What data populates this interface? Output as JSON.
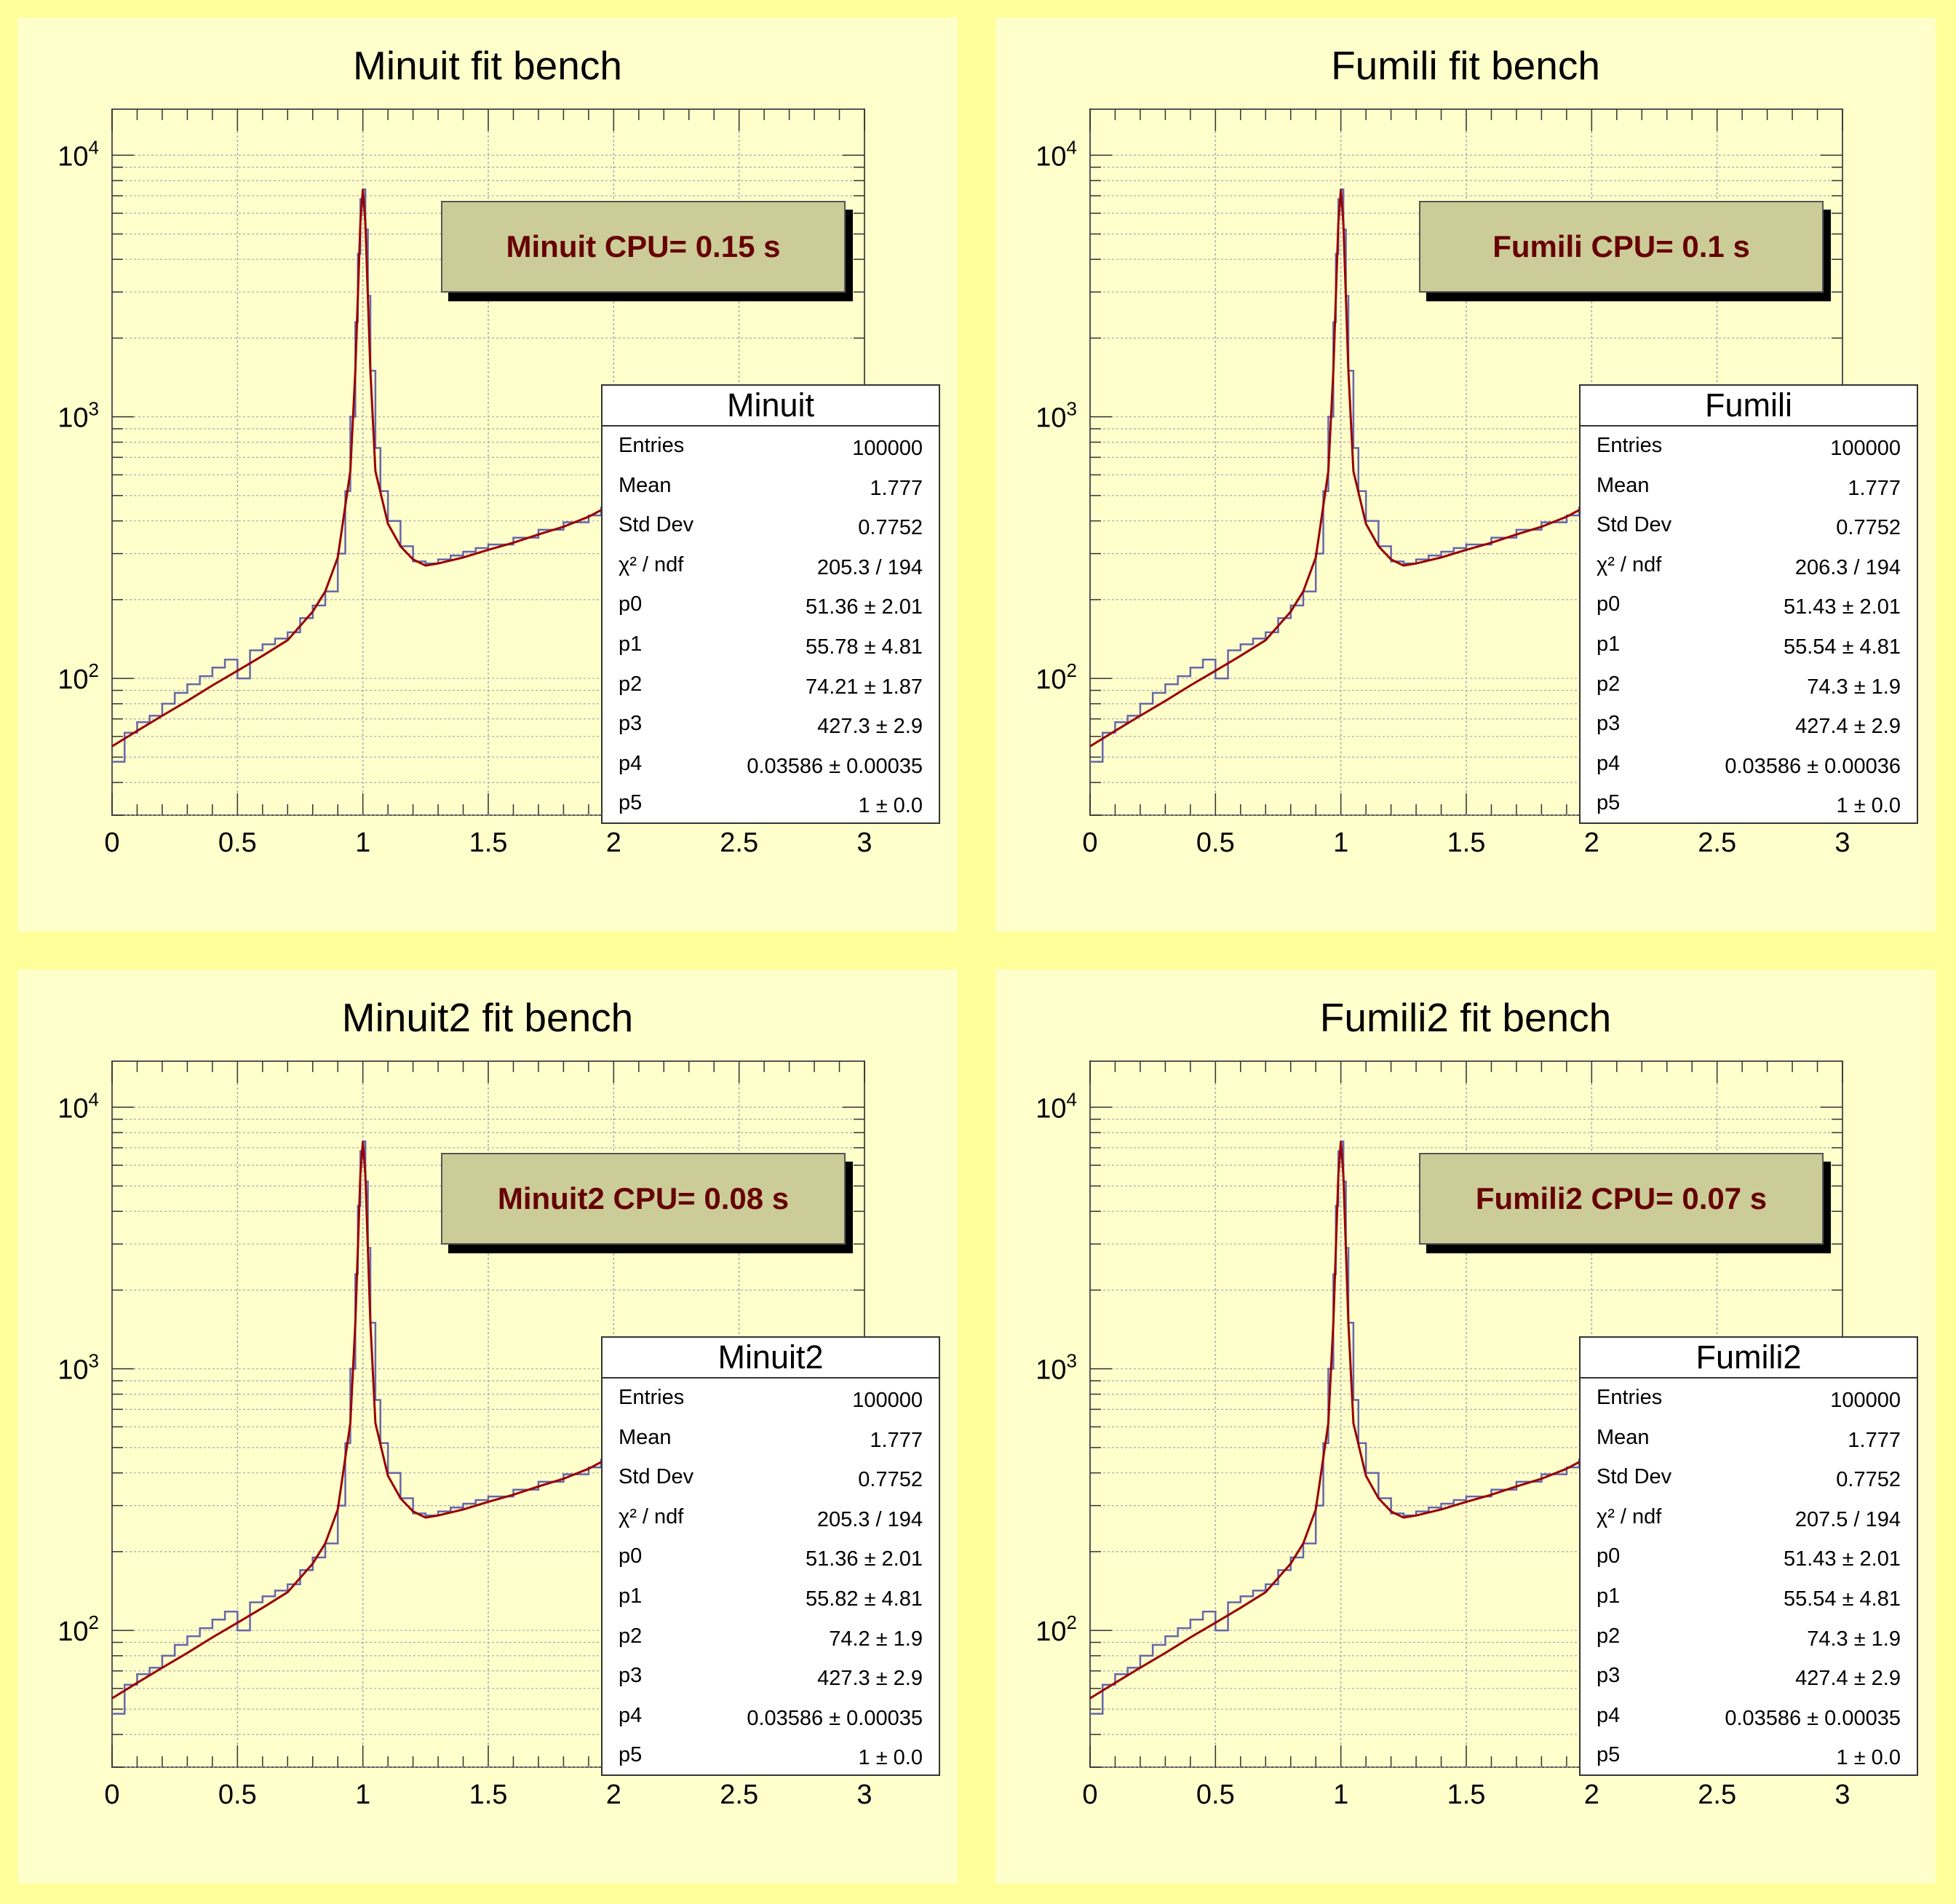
{
  "colors": {
    "canvas": "#ffff99",
    "pad": "#ffffcc",
    "histogram": "#6666aa",
    "fit": "#990000",
    "cpu_box": "#cccc99",
    "cpu_text": "#660000"
  },
  "axis_labels": {
    "x_ticks": [
      "0",
      "0.5",
      "1",
      "1.5",
      "2",
      "2.5",
      "3"
    ],
    "y_tick_base": "10",
    "y_tick_exponents": [
      "2",
      "3",
      "4"
    ]
  },
  "pads": [
    {
      "title": "Minuit fit bench",
      "cpu_label": "Minuit CPU= 0.15 s",
      "stats": {
        "name": "Minuit",
        "rows": [
          {
            "key": "Entries",
            "value": "100000"
          },
          {
            "key": "Mean",
            "value": "1.777"
          },
          {
            "key": "Std Dev",
            "value": "0.7752"
          },
          {
            "key": "χ² / ndf",
            "value": "205.3 / 194"
          },
          {
            "key": "p0",
            "value": "51.36 ± 2.01"
          },
          {
            "key": "p1",
            "value": "55.78 ± 4.81"
          },
          {
            "key": "p2",
            "value": "74.21 ± 1.87"
          },
          {
            "key": "p3",
            "value": "427.3 ± 2.9"
          },
          {
            "key": "p4",
            "value": "0.03586 ± 0.00035"
          },
          {
            "key": "p5",
            "value": "1 ± 0.0"
          }
        ]
      }
    },
    {
      "title": "Fumili fit bench",
      "cpu_label": "Fumili CPU= 0.1 s",
      "stats": {
        "name": "Fumili",
        "rows": [
          {
            "key": "Entries",
            "value": "100000"
          },
          {
            "key": "Mean",
            "value": "1.777"
          },
          {
            "key": "Std Dev",
            "value": "0.7752"
          },
          {
            "key": "χ² / ndf",
            "value": "206.3 / 194"
          },
          {
            "key": "p0",
            "value": "51.43 ± 2.01"
          },
          {
            "key": "p1",
            "value": "55.54 ± 4.81"
          },
          {
            "key": "p2",
            "value": "74.3 ± 1.9"
          },
          {
            "key": "p3",
            "value": "427.4 ± 2.9"
          },
          {
            "key": "p4",
            "value": "0.03586 ± 0.00036"
          },
          {
            "key": "p5",
            "value": "1 ± 0.0"
          }
        ]
      }
    },
    {
      "title": "Minuit2 fit bench",
      "cpu_label": "Minuit2 CPU= 0.08 s",
      "stats": {
        "name": "Minuit2",
        "rows": [
          {
            "key": "Entries",
            "value": "100000"
          },
          {
            "key": "Mean",
            "value": "1.777"
          },
          {
            "key": "Std Dev",
            "value": "0.7752"
          },
          {
            "key": "χ² / ndf",
            "value": "205.3 / 194"
          },
          {
            "key": "p0",
            "value": "51.36 ± 2.01"
          },
          {
            "key": "p1",
            "value": "55.82 ± 4.81"
          },
          {
            "key": "p2",
            "value": "74.2 ± 1.9"
          },
          {
            "key": "p3",
            "value": "427.3 ± 2.9"
          },
          {
            "key": "p4",
            "value": "0.03586 ± 0.00035"
          },
          {
            "key": "p5",
            "value": "1 ± 0.0"
          }
        ]
      }
    },
    {
      "title": "Fumili2 fit bench",
      "cpu_label": "Fumili2 CPU= 0.07 s",
      "stats": {
        "name": "Fumili2",
        "rows": [
          {
            "key": "Entries",
            "value": "100000"
          },
          {
            "key": "Mean",
            "value": "1.777"
          },
          {
            "key": "Std Dev",
            "value": "0.7752"
          },
          {
            "key": "χ² / ndf",
            "value": "207.5 / 194"
          },
          {
            "key": "p0",
            "value": "51.43 ± 2.01"
          },
          {
            "key": "p1",
            "value": "55.54 ± 4.81"
          },
          {
            "key": "p2",
            "value": "74.3 ± 1.9"
          },
          {
            "key": "p3",
            "value": "427.4 ± 2.9"
          },
          {
            "key": "p4",
            "value": "0.03586 ± 0.00035"
          },
          {
            "key": "p5",
            "value": "1 ± 0.0"
          }
        ]
      }
    }
  ],
  "chart_data": {
    "type": "line",
    "description_free": true,
    "xlim": [
      0,
      3
    ],
    "ylim": [
      30,
      15000
    ],
    "y_scale": "log",
    "grid": true,
    "series": [
      {
        "kind": "histogram",
        "x": [
          0.0,
          0.05,
          0.1,
          0.15,
          0.2,
          0.25,
          0.3,
          0.35,
          0.4,
          0.45,
          0.5,
          0.55,
          0.6,
          0.65,
          0.7,
          0.75,
          0.8,
          0.85,
          0.9,
          0.93,
          0.95,
          0.97,
          0.98,
          0.99,
          1.0,
          1.01,
          1.02,
          1.03,
          1.05,
          1.07,
          1.1,
          1.15,
          1.2,
          1.25,
          1.3,
          1.35,
          1.4,
          1.45,
          1.5,
          1.6,
          1.7,
          1.8,
          1.9,
          1.95
        ],
        "y": [
          48,
          62,
          68,
          72,
          80,
          88,
          95,
          102,
          110,
          118,
          100,
          128,
          135,
          142,
          150,
          170,
          190,
          215,
          300,
          520,
          1000,
          2300,
          4200,
          6800,
          7400,
          5200,
          2900,
          1500,
          760,
          520,
          400,
          320,
          280,
          275,
          285,
          295,
          305,
          315,
          325,
          345,
          370,
          395,
          420,
          450
        ]
      },
      {
        "kind": "fit",
        "x": [
          0.0,
          0.1,
          0.2,
          0.3,
          0.4,
          0.5,
          0.6,
          0.7,
          0.8,
          0.85,
          0.9,
          0.95,
          0.97,
          0.99,
          1.0,
          1.01,
          1.03,
          1.05,
          1.1,
          1.15,
          1.2,
          1.25,
          1.3,
          1.4,
          1.5,
          1.6,
          1.7,
          1.8,
          1.9,
          1.95
        ],
        "y": [
          55,
          63,
          72,
          82,
          94,
          107,
          122,
          140,
          180,
          215,
          290,
          620,
          1500,
          5500,
          7400,
          5500,
          1500,
          620,
          390,
          320,
          285,
          270,
          275,
          290,
          310,
          330,
          355,
          380,
          415,
          440
        ]
      }
    ]
  }
}
